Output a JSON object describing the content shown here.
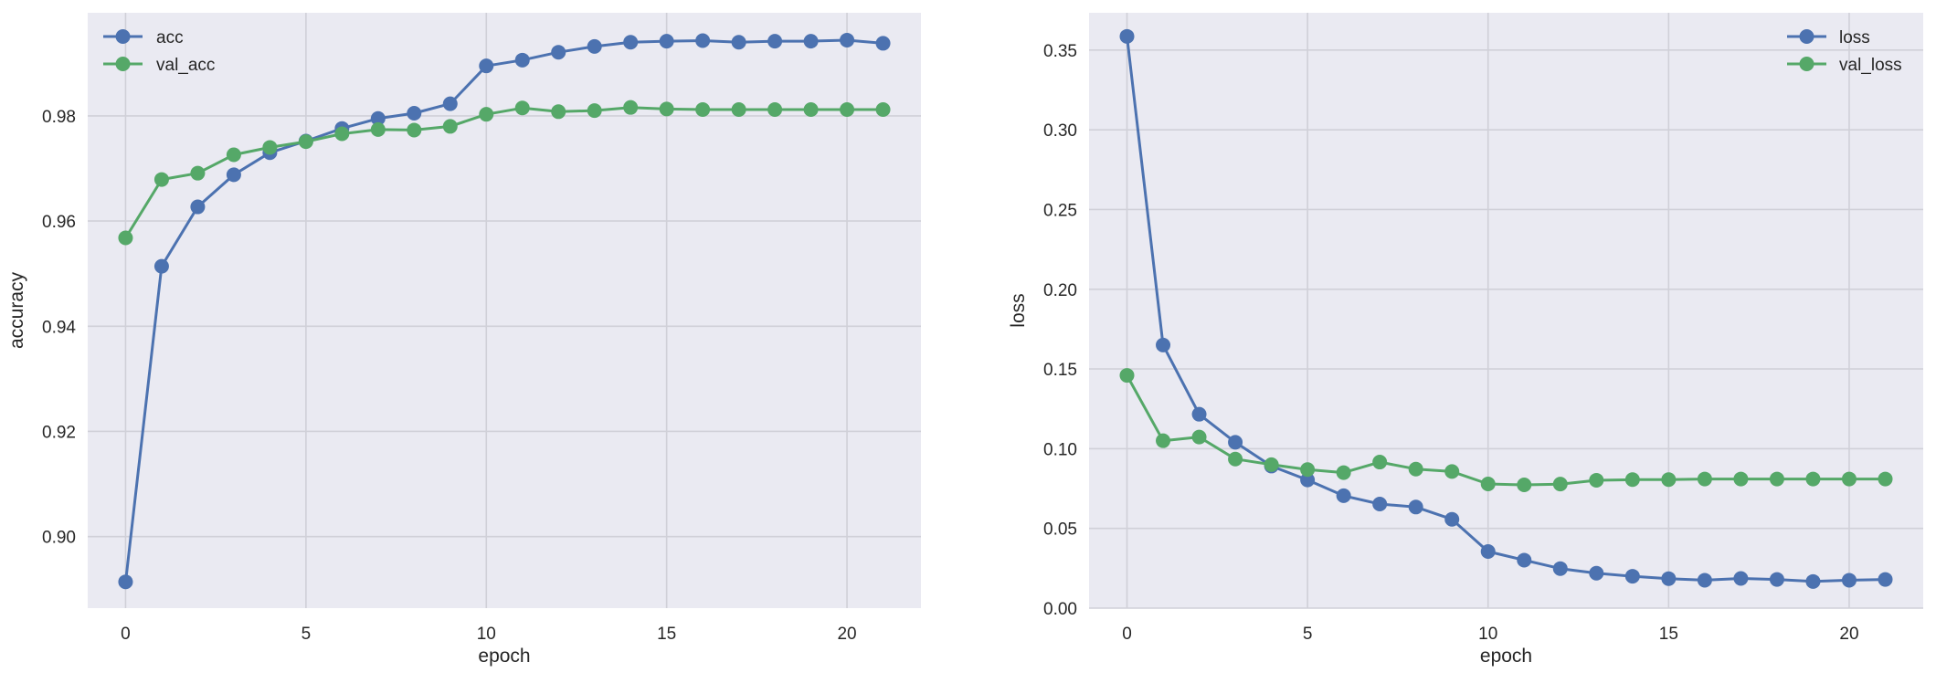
{
  "figure": {
    "background": "#FFFFFF",
    "axes_background": "#EAEAF2",
    "grid_color": "#D0D0D8",
    "text_color": "#262626",
    "series_colors": {
      "blue": "#4C72B0",
      "green": "#55A868"
    }
  },
  "chart_data": [
    {
      "type": "line",
      "title": "",
      "xlabel": "epoch",
      "ylabel": "accuracy",
      "grid": true,
      "legend_position": "upper left",
      "xlim": [
        -1.05,
        22.05
      ],
      "ylim": [
        0.8864,
        0.9996
      ],
      "xticks": [
        0,
        5,
        10,
        15,
        20
      ],
      "xtick_labels": [
        "0",
        "5",
        "10",
        "15",
        "20"
      ],
      "yticks": [
        0.9,
        0.92,
        0.94,
        0.96,
        0.98
      ],
      "ytick_labels": [
        "0.90",
        "0.92",
        "0.94",
        "0.96",
        "0.98"
      ],
      "x": [
        0,
        1,
        2,
        3,
        4,
        5,
        6,
        7,
        8,
        9,
        10,
        11,
        12,
        13,
        14,
        15,
        16,
        17,
        18,
        19,
        20,
        21
      ],
      "series": [
        {
          "name": "acc",
          "color": "#4C72B0",
          "marker": "o",
          "values": [
            0.8914,
            0.9514,
            0.9627,
            0.9688,
            0.973,
            0.9752,
            0.9776,
            0.9795,
            0.9805,
            0.9823,
            0.9895,
            0.9906,
            0.9921,
            0.9932,
            0.994,
            0.9942,
            0.9943,
            0.994,
            0.9942,
            0.9942,
            0.9944,
            0.9938
          ]
        },
        {
          "name": "val_acc",
          "color": "#55A868",
          "marker": "o",
          "values": [
            0.9568,
            0.9679,
            0.9691,
            0.9726,
            0.974,
            0.9751,
            0.9766,
            0.9774,
            0.9773,
            0.978,
            0.9803,
            0.9815,
            0.9808,
            0.981,
            0.9816,
            0.9813,
            0.9812,
            0.9812,
            0.9812,
            0.9812,
            0.9812,
            0.9812
          ]
        }
      ]
    },
    {
      "type": "line",
      "title": "",
      "xlabel": "epoch",
      "ylabel": "loss",
      "grid": true,
      "legend_position": "upper right",
      "xlim": [
        -1.05,
        22.05
      ],
      "ylim": [
        0.0,
        0.3734
      ],
      "xticks": [
        0,
        5,
        10,
        15,
        20
      ],
      "xtick_labels": [
        "0",
        "5",
        "10",
        "15",
        "20"
      ],
      "yticks": [
        0.0,
        0.05,
        0.1,
        0.15,
        0.2,
        0.25,
        0.3,
        0.35
      ],
      "ytick_labels": [
        "0.00",
        "0.05",
        "0.10",
        "0.15",
        "0.20",
        "0.25",
        "0.30",
        "0.35"
      ],
      "x": [
        0,
        1,
        2,
        3,
        4,
        5,
        6,
        7,
        8,
        9,
        10,
        11,
        12,
        13,
        14,
        15,
        16,
        17,
        18,
        19,
        20,
        21
      ],
      "series": [
        {
          "name": "loss",
          "color": "#4C72B0",
          "marker": "o",
          "values": [
            0.3586,
            0.165,
            0.1216,
            0.104,
            0.0891,
            0.0804,
            0.0705,
            0.0653,
            0.0634,
            0.0557,
            0.0355,
            0.0301,
            0.0248,
            0.0219,
            0.02,
            0.0185,
            0.0175,
            0.0186,
            0.018,
            0.0167,
            0.0175,
            0.018
          ]
        },
        {
          "name": "val_loss",
          "color": "#55A868",
          "marker": "o",
          "values": [
            0.146,
            0.105,
            0.1073,
            0.0935,
            0.09,
            0.0869,
            0.085,
            0.0916,
            0.0872,
            0.0857,
            0.0779,
            0.0773,
            0.0778,
            0.0802,
            0.0806,
            0.0806,
            0.081,
            0.081,
            0.081,
            0.081,
            0.081,
            0.081
          ]
        }
      ]
    }
  ],
  "panels": [
    {
      "xlabel": "epoch",
      "ylabel": "accuracy",
      "legend": [
        {
          "label": "acc"
        },
        {
          "label": "val_acc"
        }
      ]
    },
    {
      "xlabel": "epoch",
      "ylabel": "loss",
      "legend": [
        {
          "label": "loss"
        },
        {
          "label": "val_loss"
        }
      ]
    }
  ]
}
